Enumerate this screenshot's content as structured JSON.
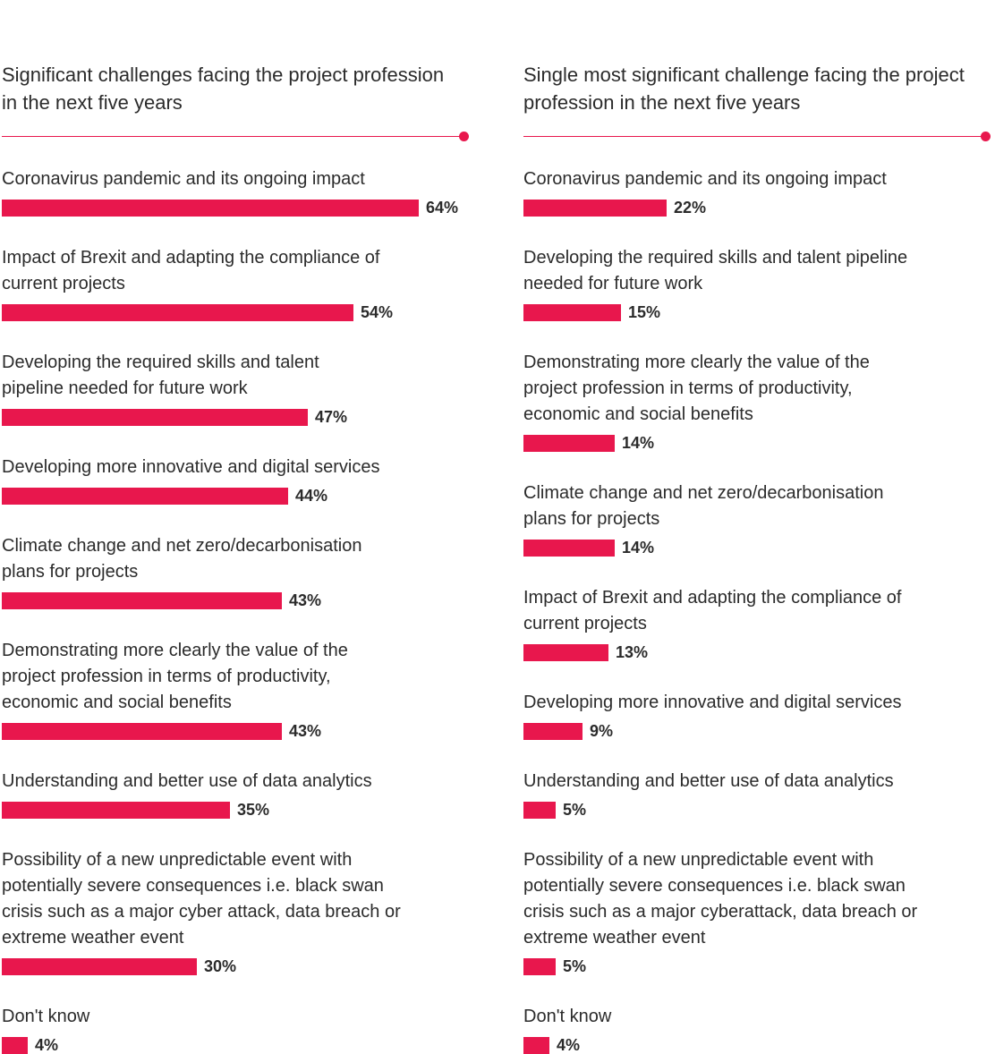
{
  "colors": {
    "accent": "#e8174d",
    "text": "#2b2b2b"
  },
  "chart_data": [
    {
      "type": "bar",
      "orientation": "horizontal",
      "title": "Significant challenges facing the project profession in the next five years",
      "title_lines": [
        "Significant challenges facing the project profession",
        "in the next five years"
      ],
      "unit": "%",
      "xlim": [
        0,
        64
      ],
      "items": [
        {
          "label_lines": [
            "Coronavirus pandemic and its ongoing impact"
          ],
          "value": 64,
          "value_label": "64%"
        },
        {
          "label_lines": [
            "Impact of Brexit and adapting the compliance of",
            "current projects"
          ],
          "value": 54,
          "value_label": "54%"
        },
        {
          "label_lines": [
            "Developing the required skills and talent",
            "pipeline needed for future work"
          ],
          "value": 47,
          "value_label": "47%"
        },
        {
          "label_lines": [
            "Developing more innovative and digital services"
          ],
          "value": 44,
          "value_label": "44%"
        },
        {
          "label_lines": [
            "Climate change and net zero/decarbonisation",
            "plans for projects"
          ],
          "value": 43,
          "value_label": "43%"
        },
        {
          "label_lines": [
            "Demonstrating more clearly the value of the",
            "project profession in terms of productivity,",
            "economic and social benefits"
          ],
          "value": 43,
          "value_label": "43%"
        },
        {
          "label_lines": [
            "Understanding and better use of data analytics"
          ],
          "value": 35,
          "value_label": "35%"
        },
        {
          "label_lines": [
            "Possibility of a new unpredictable event with",
            "potentially severe consequences i.e. black swan",
            "crisis such as a major cyber attack, data breach or",
            "extreme weather event"
          ],
          "value": 30,
          "value_label": "30%"
        },
        {
          "label_lines": [
            "Don't know"
          ],
          "value": 4,
          "value_label": "4%"
        }
      ]
    },
    {
      "type": "bar",
      "orientation": "horizontal",
      "title": "Single most significant challenge facing the project profession in the next five years",
      "title_lines": [
        "Single most significant challenge facing the project",
        "profession in the next five years"
      ],
      "unit": "%",
      "xlim": [
        0,
        64
      ],
      "items": [
        {
          "label_lines": [
            "Coronavirus pandemic and its ongoing impact"
          ],
          "value": 22,
          "value_label": "22%"
        },
        {
          "label_lines": [
            "Developing the required skills and talent pipeline",
            "needed for future work"
          ],
          "value": 15,
          "value_label": "15%"
        },
        {
          "label_lines": [
            "Demonstrating more clearly the value of the",
            "project profession in terms of productivity,",
            "economic and social benefits"
          ],
          "value": 14,
          "value_label": "14%"
        },
        {
          "label_lines": [
            "Climate change and net zero/decarbonisation",
            "plans for projects"
          ],
          "value": 14,
          "value_label": "14%"
        },
        {
          "label_lines": [
            "Impact of Brexit and adapting the compliance of",
            "current projects"
          ],
          "value": 13,
          "value_label": "13%"
        },
        {
          "label_lines": [
            "Developing more innovative and digital services"
          ],
          "value": 9,
          "value_label": "9%"
        },
        {
          "label_lines": [
            "Understanding and better use of data analytics"
          ],
          "value": 5,
          "value_label": "5%"
        },
        {
          "label_lines": [
            "Possibility of a new unpredictable event with",
            "potentially severe consequences i.e. black swan",
            "crisis such as a major cyberattack, data breach or",
            "extreme weather event"
          ],
          "value": 5,
          "value_label": "5%"
        },
        {
          "label_lines": [
            "Don't know"
          ],
          "value": 4,
          "value_label": "4%"
        }
      ]
    }
  ]
}
